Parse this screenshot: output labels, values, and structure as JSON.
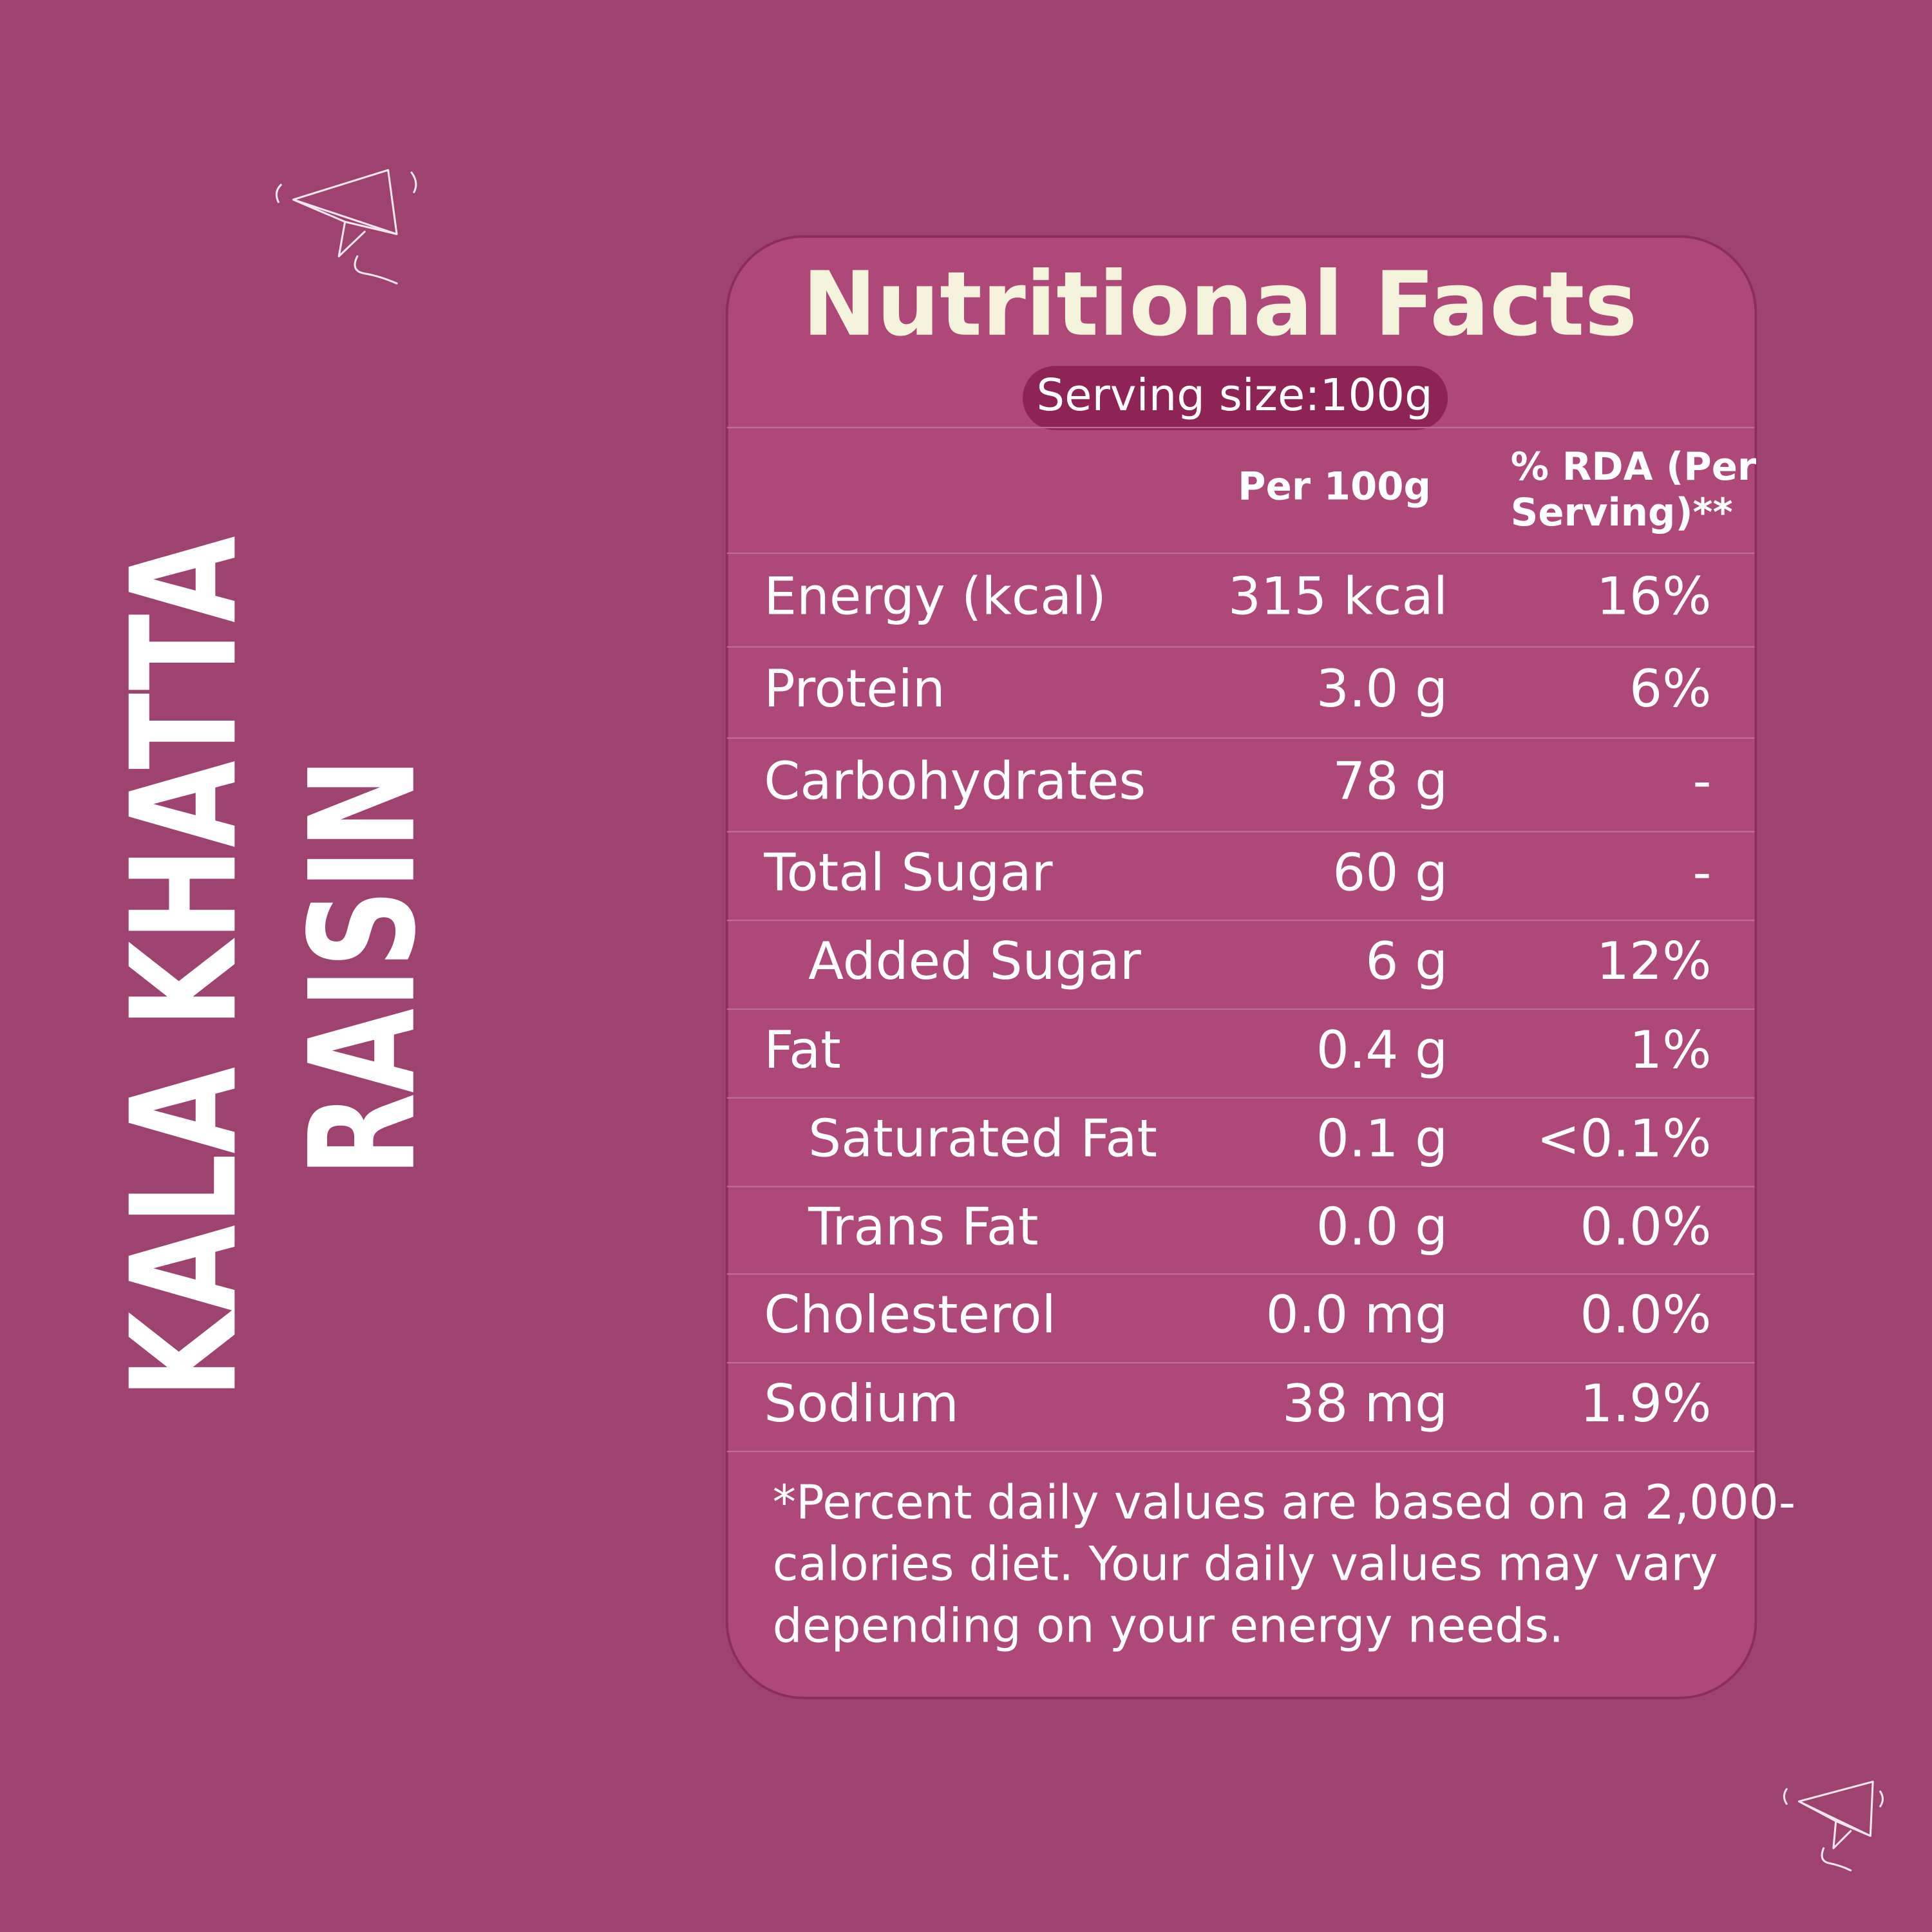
{
  "product_name": [
    "KALA KHATTA",
    "RAISIN"
  ],
  "title": "Nutritional Facts",
  "serving_size": "Serving size:100g",
  "table": {
    "header": [
      "Per 100g",
      [
        "% RDA (Per",
        "Serving)**"
      ]
    ],
    "rows": [
      {
        "name": "Energy (kcal)",
        "per_100g": "315 kcal",
        "rda": "16%",
        "indent": false
      },
      {
        "name": "Protein",
        "per_100g": "3.0 g",
        "rda": "6%",
        "indent": false
      },
      {
        "name": "Carbohydrates",
        "per_100g": "78 g",
        "rda": "-",
        "indent": false
      },
      {
        "name": "Total Sugar",
        "per_100g": "60 g",
        "rda": "-",
        "indent": false
      },
      {
        "name": "Added Sugar",
        "per_100g": "6 g",
        "rda": "12%",
        "indent": true
      },
      {
        "name": "Fat",
        "per_100g": "0.4 g",
        "rda": "1%",
        "indent": false
      },
      {
        "name": "Saturated Fat",
        "per_100g": "0.1 g",
        "rda": "<0.1%",
        "indent": true
      },
      {
        "name": "Trans Fat",
        "per_100g": "0.0 g",
        "rda": "0.0%",
        "indent": true
      },
      {
        "name": "Cholesterol",
        "per_100g": "0.0 mg",
        "rda": "0.0%",
        "indent": false
      },
      {
        "name": "Sodium",
        "per_100g": "38 mg",
        "rda": "1.9%",
        "indent": false
      }
    ]
  },
  "footnote": [
    "*Percent daily values are based on a 2,000-",
    "calories diet. Your daily values may vary",
    "depending on your energy needs."
  ]
}
